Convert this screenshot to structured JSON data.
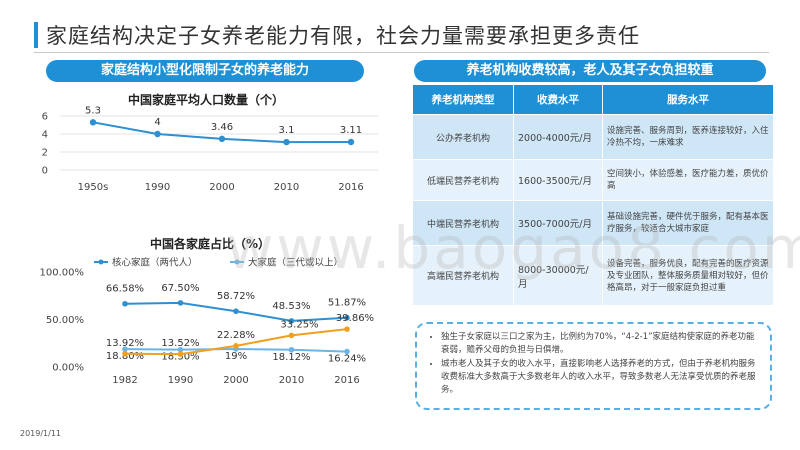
{
  "title": "家庭结构决定子女养老能力有限，社会力量需要承担更多责任",
  "left_banner": "家庭结构小型化限制子女的养老能力",
  "right_banner": "养老机构收费较高，老人及其子女负担较重",
  "chart1_title": "中国家庭平均人口数量（个）",
  "chart2_title": "中国各家庭占比（%）",
  "chart_data": [
    {
      "type": "line",
      "title": "中国家庭平均人口数量（个）",
      "categories": [
        "1950s",
        "1990",
        "2000",
        "2010",
        "2016"
      ],
      "values": [
        5.3,
        4,
        3.46,
        3.1,
        3.11
      ],
      "value_labels": [
        "5.3",
        "4",
        "3.46",
        "3.1",
        "3.11"
      ],
      "yticks": [
        "6",
        "4",
        "2",
        "0"
      ],
      "ylim": [
        0,
        6
      ],
      "grid": true,
      "color": "#2e8fd1"
    },
    {
      "type": "line",
      "title": "中国各家庭占比（%）",
      "categories": [
        "1982",
        "1990",
        "2000",
        "2010",
        "2016"
      ],
      "yticks": [
        "100.00%",
        "50.00%",
        "0.00%"
      ],
      "ylim": [
        0,
        100
      ],
      "legend_position": "top",
      "series": [
        {
          "name": "核心家庭（两代人）",
          "values": [
            66.58,
            67.5,
            58.72,
            48.53,
            51.87
          ],
          "labels": [
            "66.58%",
            "67.50%",
            "58.72%",
            "48.53%",
            "51.87%"
          ],
          "color": "#2e8fd1"
        },
        {
          "name": "大家庭（三代或以上）",
          "values": [
            18.8,
            18.3,
            19,
            18.12,
            16.24
          ],
          "labels": [
            "18.80%",
            "18.30%",
            "19%",
            "18.12%",
            "16.24%"
          ],
          "color": "#6ab4e6"
        },
        {
          "name": "",
          "values": [
            13.92,
            13.52,
            22.28,
            33.25,
            39.86
          ],
          "labels": [
            "13.92%",
            "13.52%",
            "22.28%",
            "33.25%",
            "39.86%"
          ],
          "color": "#f0a020"
        }
      ]
    }
  ],
  "fee_table": {
    "headers": [
      "养老机构类型",
      "收费水平",
      "服务水平"
    ],
    "rows": [
      {
        "type": "公办养老机构",
        "fee": "2000-4000元/月",
        "service": "设施完善、服务周到，医养连接较好，入住冷热不均，一床难求"
      },
      {
        "type": "低端民营养老机构",
        "fee": "1600-3500元/月",
        "service": "空间狭小，体验感差，医疗能力差，质优价高"
      },
      {
        "type": "中端民营养老机构",
        "fee": "3500-7000元/月",
        "service": "基础设施完善，硬件优于服务，配有基本医疗服务，较适合大城市家庭"
      },
      {
        "type": "高端民营养老机构",
        "fee": "8000-30000元/月",
        "service": "设备完善，服务优良，配有完善的医疗资源及专业团队，整体服务质量相对较好，但价格高昂，对于一般家庭负担过重"
      }
    ]
  },
  "notes": [
    "独生子女家庭以三口之家为主，比例约为70%，“4-2-1”家庭结构使家庭的养老功能衰弱，赡养父母的负担与日俱增。",
    "城市老人及其子女的收入水平，直接影响老人选择养老的方式，但由于养老机构服务收费标准大多数高于大多数老年人的收入水平，导致多数老人无法享受优质的养老服务。"
  ],
  "date": "2019/1/11",
  "watermark": "www.baogao8.com"
}
